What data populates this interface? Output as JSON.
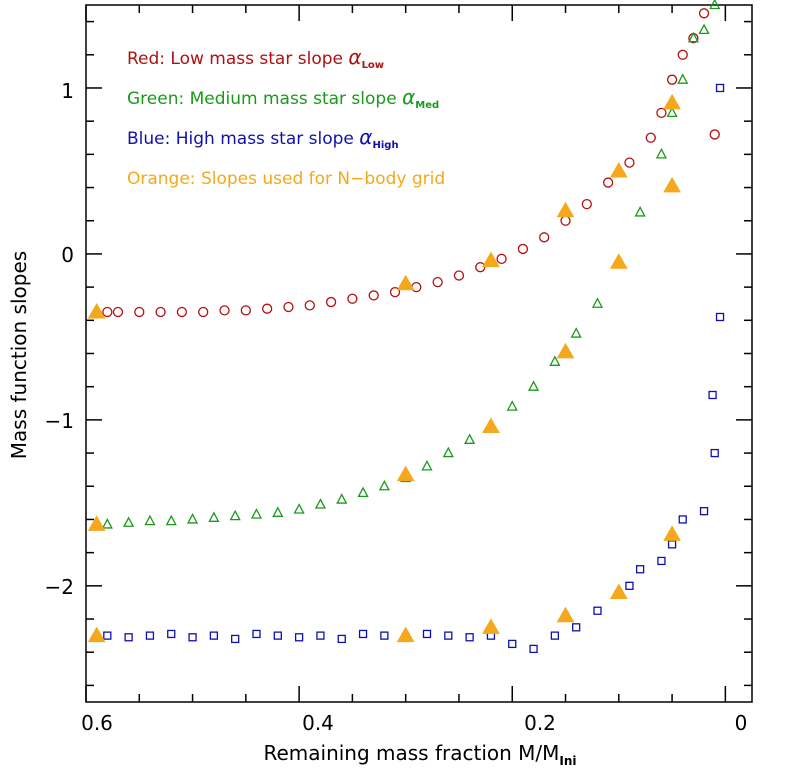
{
  "chart_data": {
    "type": "scatter",
    "title": "",
    "xlabel": "Remaining mass fraction M/M",
    "xlabel_sub": "Ini",
    "ylabel": "Mass function slopes",
    "xlim": [
      0.6,
      -0.025
    ],
    "ylim": [
      -2.7,
      1.5
    ],
    "x_ticks": [
      "0.6",
      "0.4",
      "0.2",
      "0"
    ],
    "y_ticks": [
      "1",
      "0",
      "−1",
      "−2"
    ],
    "x_tick_values": [
      0.6,
      0.4,
      0.2,
      0
    ],
    "y_tick_values": [
      1,
      0,
      -1,
      -2
    ],
    "legend": [
      {
        "text": "Red: Low mass star slope ",
        "symbol": "α",
        "sub": "Low",
        "color": "#b01010"
      },
      {
        "text": "Green: Medium mass star slope ",
        "symbol": "α",
        "sub": "Med",
        "color": "#1a9a1a"
      },
      {
        "text": "Blue: High mass star slope ",
        "symbol": "α",
        "sub": "High",
        "color": "#1010b0"
      },
      {
        "text": "Orange: Slopes used for N−body grid",
        "symbol": "",
        "sub": "",
        "color": "#f5a81c"
      }
    ],
    "series": [
      {
        "name": "Low mass star slope",
        "marker": "circle",
        "color": "#b01010",
        "points": [
          [
            0.58,
            -0.35
          ],
          [
            0.57,
            -0.35
          ],
          [
            0.55,
            -0.35
          ],
          [
            0.53,
            -0.35
          ],
          [
            0.51,
            -0.35
          ],
          [
            0.49,
            -0.35
          ],
          [
            0.47,
            -0.34
          ],
          [
            0.45,
            -0.34
          ],
          [
            0.43,
            -0.33
          ],
          [
            0.41,
            -0.32
          ],
          [
            0.39,
            -0.31
          ],
          [
            0.37,
            -0.29
          ],
          [
            0.35,
            -0.27
          ],
          [
            0.33,
            -0.25
          ],
          [
            0.31,
            -0.23
          ],
          [
            0.29,
            -0.2
          ],
          [
            0.27,
            -0.17
          ],
          [
            0.25,
            -0.13
          ],
          [
            0.23,
            -0.08
          ],
          [
            0.21,
            -0.03
          ],
          [
            0.19,
            0.03
          ],
          [
            0.17,
            0.1
          ],
          [
            0.15,
            0.2
          ],
          [
            0.13,
            0.3
          ],
          [
            0.11,
            0.43
          ],
          [
            0.09,
            0.55
          ],
          [
            0.07,
            0.7
          ],
          [
            0.06,
            0.85
          ],
          [
            0.05,
            1.05
          ],
          [
            0.04,
            1.2
          ],
          [
            0.03,
            1.3
          ],
          [
            0.02,
            1.45
          ],
          [
            0.01,
            0.72
          ]
        ]
      },
      {
        "name": "Medium mass star slope",
        "marker": "triangle",
        "color": "#1a9a1a",
        "points": [
          [
            0.58,
            -1.63
          ],
          [
            0.56,
            -1.62
          ],
          [
            0.54,
            -1.61
          ],
          [
            0.52,
            -1.61
          ],
          [
            0.5,
            -1.6
          ],
          [
            0.48,
            -1.59
          ],
          [
            0.46,
            -1.58
          ],
          [
            0.44,
            -1.57
          ],
          [
            0.42,
            -1.56
          ],
          [
            0.4,
            -1.54
          ],
          [
            0.38,
            -1.51
          ],
          [
            0.36,
            -1.48
          ],
          [
            0.34,
            -1.44
          ],
          [
            0.32,
            -1.4
          ],
          [
            0.3,
            -1.35
          ],
          [
            0.28,
            -1.28
          ],
          [
            0.26,
            -1.2
          ],
          [
            0.24,
            -1.12
          ],
          [
            0.22,
            -1.03
          ],
          [
            0.2,
            -0.92
          ],
          [
            0.18,
            -0.8
          ],
          [
            0.16,
            -0.65
          ],
          [
            0.14,
            -0.48
          ],
          [
            0.12,
            -0.3
          ],
          [
            0.1,
            -0.05
          ],
          [
            0.08,
            0.25
          ],
          [
            0.06,
            0.6
          ],
          [
            0.05,
            0.85
          ],
          [
            0.04,
            1.05
          ],
          [
            0.03,
            1.3
          ],
          [
            0.02,
            1.35
          ],
          [
            0.01,
            1.5
          ]
        ]
      },
      {
        "name": "High mass star slope",
        "marker": "square",
        "color": "#1010b0",
        "points": [
          [
            0.58,
            -2.3
          ],
          [
            0.56,
            -2.31
          ],
          [
            0.54,
            -2.3
          ],
          [
            0.52,
            -2.29
          ],
          [
            0.5,
            -2.31
          ],
          [
            0.48,
            -2.3
          ],
          [
            0.46,
            -2.32
          ],
          [
            0.44,
            -2.29
          ],
          [
            0.42,
            -2.3
          ],
          [
            0.4,
            -2.31
          ],
          [
            0.38,
            -2.3
          ],
          [
            0.36,
            -2.32
          ],
          [
            0.34,
            -2.29
          ],
          [
            0.32,
            -2.3
          ],
          [
            0.3,
            -2.31
          ],
          [
            0.28,
            -2.29
          ],
          [
            0.26,
            -2.3
          ],
          [
            0.24,
            -2.31
          ],
          [
            0.22,
            -2.3
          ],
          [
            0.2,
            -2.35
          ],
          [
            0.18,
            -2.38
          ],
          [
            0.16,
            -2.3
          ],
          [
            0.14,
            -2.25
          ],
          [
            0.12,
            -2.15
          ],
          [
            0.1,
            -2.05
          ],
          [
            0.09,
            -2.0
          ],
          [
            0.08,
            -1.9
          ],
          [
            0.06,
            -1.85
          ],
          [
            0.05,
            -1.75
          ],
          [
            0.04,
            -1.6
          ],
          [
            0.02,
            -1.55
          ],
          [
            0.01,
            -1.2
          ],
          [
            0.012,
            -0.85
          ],
          [
            0.005,
            -0.38
          ],
          [
            0.005,
            1.0
          ]
        ]
      },
      {
        "name": "Slopes used for N-body grid",
        "marker": "filled-triangle",
        "color": "#f5a81c",
        "points": [
          [
            0.59,
            -0.35
          ],
          [
            0.59,
            -1.63
          ],
          [
            0.59,
            -2.3
          ],
          [
            0.3,
            -0.18
          ],
          [
            0.3,
            -1.33
          ],
          [
            0.3,
            -2.3
          ],
          [
            0.22,
            -0.04
          ],
          [
            0.22,
            -1.04
          ],
          [
            0.22,
            -2.25
          ],
          [
            0.15,
            0.26
          ],
          [
            0.15,
            -0.59
          ],
          [
            0.15,
            -2.18
          ],
          [
            0.1,
            0.5
          ],
          [
            0.1,
            -0.05
          ],
          [
            0.1,
            -2.04
          ],
          [
            0.05,
            0.91
          ],
          [
            0.05,
            0.41
          ],
          [
            0.05,
            -1.69
          ]
        ]
      }
    ]
  }
}
